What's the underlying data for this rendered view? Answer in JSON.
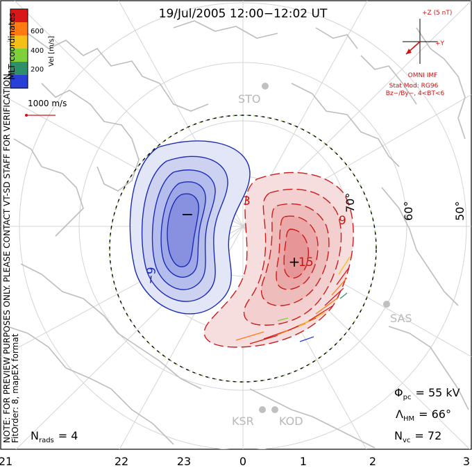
{
  "title": "19/Jul/2005 12:00−12:02 UT",
  "colorbar": {
    "label": "Vel [m/s]",
    "ticks": [
      "600",
      "400",
      "200"
    ],
    "colors": [
      "#d81818",
      "#ff7a10",
      "#f4c018",
      "#7fcf3a",
      "#2e8f6a",
      "#2a3fd8"
    ]
  },
  "scale_label": "1000 m/s",
  "side_notes": {
    "coords": "MLT coordinates",
    "preview": "NOTE: FOR PREVIEW PURPOSES ONLY. PLEASE CONTACT VT-SD STAFF FOR VERIFICATION.",
    "fit": "FitOrder: 8, mapEX format"
  },
  "imf": {
    "z_label": "+Z (5 nT)",
    "y_label": "+Y",
    "source": "OMNI IMF",
    "stat_mod": "Stat Mod: RG96",
    "condition": "Bz−/By−, 4<BT<6"
  },
  "radars": [
    "STO",
    "SAS",
    "KSR",
    "KOD"
  ],
  "latitude_labels": [
    "70°",
    "60°",
    "50°"
  ],
  "mlt_labels": [
    "21",
    "22",
    "23",
    "0",
    "1",
    "2",
    "3"
  ],
  "contour_labels": [
    "3",
    "9",
    "15",
    "−9"
  ],
  "markers": {
    "min": "−",
    "max": "+"
  },
  "stats": {
    "phi_symbol": "Φ",
    "phi_sub": "pc",
    "phi_value": "= 55 kV",
    "lambda_symbol": "Λ",
    "lambda_sub": "HM",
    "lambda_value": "= 66°",
    "nvc_symbol": "N",
    "nvc_sub": "vc",
    "nvc_value": "= 72",
    "nrads_symbol": "N",
    "nrads_sub": "rads",
    "nrads_value": "= 4"
  }
}
